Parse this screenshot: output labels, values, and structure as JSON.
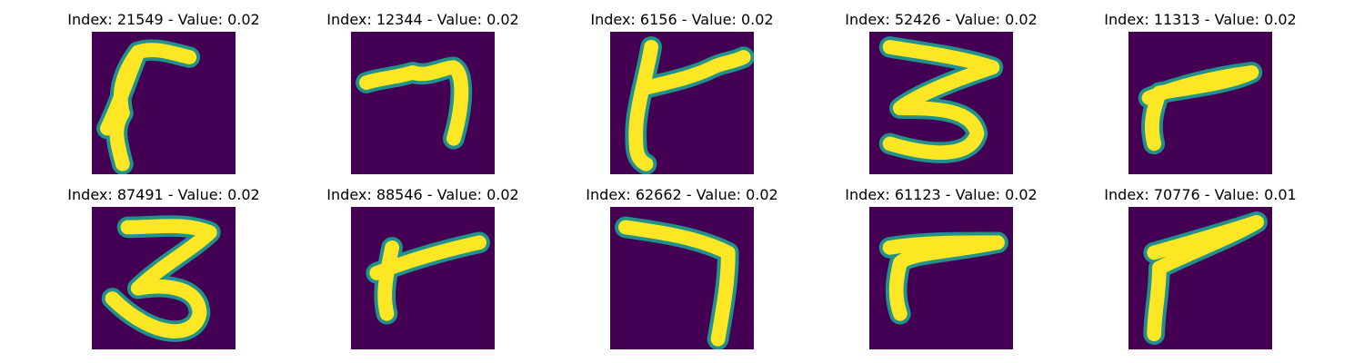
{
  "colors": {
    "background": "#440154",
    "mid": "#21918c",
    "stroke": "#fde725"
  },
  "panels": [
    {
      "title": "Index: 21549 - Value: 0.02",
      "glyph": "hook"
    },
    {
      "title": "Index: 12344 - Value: 0.02",
      "glyph": "seven-wavy"
    },
    {
      "title": "Index: 6156 - Value: 0.02",
      "glyph": "cross-seven"
    },
    {
      "title": "Index: 52426 - Value: 0.02",
      "glyph": "three"
    },
    {
      "title": "Index: 11313 - Value: 0.02",
      "glyph": "seven-short"
    },
    {
      "title": "Index: 87491 - Value: 0.02",
      "glyph": "three-tall"
    },
    {
      "title": "Index: 88546 - Value: 0.02",
      "glyph": "cross-short"
    },
    {
      "title": "Index: 62662 - Value: 0.02",
      "glyph": "seven"
    },
    {
      "title": "Index: 61123 - Value: 0.02",
      "glyph": "seven-thin"
    },
    {
      "title": "Index: 70776 - Value: 0.01",
      "glyph": "seven-thick"
    }
  ]
}
